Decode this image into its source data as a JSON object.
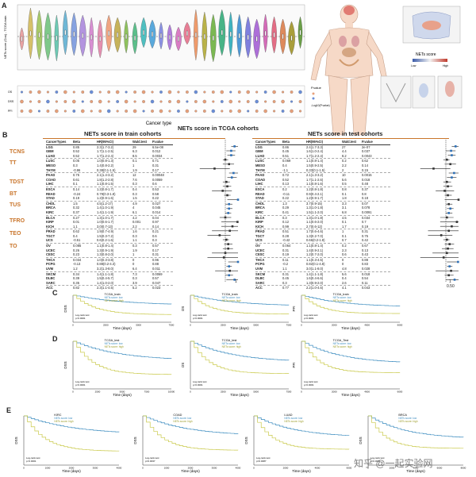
{
  "panels": {
    "a": "A",
    "b": "B",
    "c": "C",
    "d": "D",
    "e": "E"
  },
  "violin": {
    "ylabel": "NETs score (Cox) - TCGA train",
    "xlabel": "Cancer type",
    "dot_axis": [
      "OS",
      "DSS",
      "PFI"
    ],
    "legend_title": "P.value",
    "legend2_title": "-Log10(P.value)",
    "colors": [
      "#e9a3a3",
      "#d6c069",
      "#a8c96a",
      "#7fc88a",
      "#6ec9b4",
      "#6fb7d6",
      "#86a2e0",
      "#b394df",
      "#d88fd2",
      "#e58fb0",
      "#f0a582",
      "#c6b25a",
      "#8fc25e",
      "#5cbf8b",
      "#4fbfc0",
      "#5aa9dc",
      "#8a91e3",
      "#b07ddc",
      "#d97cc4",
      "#e77e95",
      "#ef9b6b",
      "#b9b248",
      "#7bb852",
      "#47b487",
      "#3fb3c0",
      "#4e98d6",
      "#8080de",
      "#ad6fd8",
      "#d46bb8",
      "#e36d85",
      "#de8a5c",
      "#a99e3b",
      "#6a9f47"
    ]
  },
  "body_legend": {
    "title": "NETs score",
    "high": "High",
    "low": "Low"
  },
  "figure_title": "NETs score in TCGA cohorts",
  "group_codes": [
    "TCNS",
    "TT",
    "TDST",
    "BT",
    "TUS",
    "TFRO",
    "TEO",
    "TO"
  ],
  "train": {
    "title": "NETs score in train cohorts",
    "headers": [
      "CancerTypes",
      "Beta",
      "HR(95%CI)",
      "Wald.test",
      "P.value"
    ],
    "rows": [
      [
        "LGG",
        "0.85",
        "2.3(1.7-3.2)",
        "29",
        "6.5e-08"
      ],
      [
        "GBM",
        "0.52",
        "1.7(1.1-2.5)",
        "6.3",
        "0.012"
      ],
      [
        "LUAD",
        "0.52",
        "1.7(1.2-2.4)",
        "8.5",
        "0.0034"
      ],
      [
        "LUSC",
        "0.05",
        "1.0(0.8-1.3)",
        "0.1",
        "0.71"
      ],
      [
        "MESO",
        "0.3",
        "1.4(0.8-2.2)",
        "1",
        "0.31"
      ],
      [
        "THYM",
        "-0.96",
        "0.38(0.1-1.5)",
        "1.9",
        "0.17"
      ],
      [
        "PAAD",
        "0.75",
        "2.1(1.4-3.2)",
        "12",
        "0.00048"
      ],
      [
        "COAD",
        "0.61",
        "1.8(1.2-2.8)",
        "7.6",
        "0.0059"
      ],
      [
        "LIHC",
        "0.1",
        "1.1(0.8-1.5)",
        "0.3",
        "0.6"
      ],
      [
        "ESCA",
        "0.14",
        "1.2(0.8-1.7)",
        "0.4",
        "0.53"
      ],
      [
        "READ",
        "-0.24",
        "0.79(0.3-1.8)",
        "0.3",
        "0.58"
      ],
      [
        "STAD",
        "0.19",
        "1.2(0.9-1.6)",
        "1.5",
        "0.22"
      ],
      [
        "CHOL",
        "1.5",
        "4.5(1.2-17)",
        "4.9",
        "0.027"
      ],
      [
        "BRCA",
        "0.32",
        "1.4(1.0-1.9)",
        "4",
        "0.045"
      ],
      [
        "KIRC",
        "0.37",
        "1.4(1.1-1.9)",
        "6.1",
        "0.014"
      ],
      [
        "BLCA",
        "0.27",
        "1.3(1.0-1.7)",
        "4.2",
        "0.04"
      ],
      [
        "KIRP",
        "0.01",
        "1.0(0.6-1.7)",
        "0.001",
        "0.97"
      ],
      [
        "KICH",
        "1.1",
        "3.0(0.7-13)",
        "2.2",
        "0.14"
      ],
      [
        "PRAD",
        "0.62",
        "1.9(0.7-4.9)",
        "1.6",
        "0.21"
      ],
      [
        "TGCT",
        "0.4",
        "1.5(0.3-7.2)",
        "0.3",
        "0.6"
      ],
      [
        "UCS",
        "-0.51",
        "0.6(0.2-1.6)",
        "1.1",
        "0.3"
      ],
      [
        "OV",
        "0.085",
        "1.1(0.8-1.4)",
        "0.3",
        "0.57"
      ],
      [
        "UCEC",
        "0.26",
        "1.3(0.9-1.9)",
        "1.9",
        "0.17"
      ],
      [
        "CESC",
        "0.23",
        "1.3(0.8-2.0)",
        "1",
        "0.31"
      ],
      [
        "THCA",
        "0.034",
        "1.0(0.3-3.8)",
        "0",
        "0.96"
      ],
      [
        "PCPG",
        "-0.13",
        "0.88(0.2-4.3)",
        "0",
        "0.88"
      ],
      [
        "UVM",
        "1.2",
        "3.2(1.3-8.0)",
        "6.4",
        "0.011"
      ],
      [
        "SKCM",
        "0.34",
        "1.4(1.1-1.8)",
        "7.3",
        "0.0069"
      ],
      [
        "DLBC",
        "0.39",
        "1.5(0.4-5.7)",
        "0.3",
        "0.57"
      ],
      [
        "SARC",
        "0.35",
        "1.4(1.0-2.0)",
        "3.9",
        "0.047"
      ],
      [
        "ACC",
        "0.82",
        "2.3(1.1-4.5)",
        "5.2",
        "0.023"
      ]
    ]
  },
  "test": {
    "title": "NETs score in test cohorts",
    "headers": [
      "CancerTypes",
      "Beta",
      "HR(95%CI)",
      "Wald.test",
      "P.value"
    ],
    "rows": [
      [
        "LGG",
        "0.86",
        "2.4(1.7-3.3)",
        "27",
        "2e-07"
      ],
      [
        "GBM",
        "0.45",
        "1.6(1.0-2.4)",
        "4.4",
        "0.037"
      ],
      [
        "LUAD",
        "0.51",
        "1.7(1.2-2.4)",
        "8.2",
        "0.0043"
      ],
      [
        "LUSC",
        "0.069",
        "1.1(0.8-1.4)",
        "0.2",
        "0.62"
      ],
      [
        "MESO",
        "0.4",
        "1.5(0.9-2.5)",
        "2.2",
        "0.14"
      ],
      [
        "THYM",
        "-1.1",
        "0.33(0.1-1.5)",
        "2",
        "0.15"
      ],
      [
        "PAAD",
        "0.72",
        "2.1(1.3-3.2)",
        "10",
        "0.0015"
      ],
      [
        "COAD",
        "0.52",
        "1.7(1.1-2.6)",
        "5.6",
        "0.018"
      ],
      [
        "LIHC",
        "0.13",
        "1.1(0.8-1.6)",
        "0.5",
        "0.48"
      ],
      [
        "ESCA",
        "0.2",
        "1.2(0.8-1.8)",
        "0.8",
        "0.37"
      ],
      [
        "READ",
        "-0.11",
        "0.9(0.4-2.1)",
        "0.1",
        "0.8"
      ],
      [
        "STAD",
        "0.22",
        "1.2(0.9-1.7)",
        "1.8",
        "0.18"
      ],
      [
        "CHOL",
        "1.3",
        "3.7(0.9-15)",
        "3.3",
        "0.07"
      ],
      [
        "BRCA",
        "0.29",
        "1.3(1.0-1.8)",
        "3.1",
        "0.078"
      ],
      [
        "KIRC",
        "0.41",
        "1.5(1.1-2.0)",
        "6.8",
        "0.0091"
      ],
      [
        "BLCA",
        "0.3",
        "1.3(1.0-1.8)",
        "4.5",
        "0.034"
      ],
      [
        "KIRP",
        "0.12",
        "1.1(0.6-2.0)",
        "0.1",
        "0.7"
      ],
      [
        "KICH",
        "0.99",
        "2.7(0.6-12)",
        "1.7",
        "0.19"
      ],
      [
        "PRAD",
        "0.51",
        "1.7(0.6-4.6)",
        "1",
        "0.31"
      ],
      [
        "TGCT",
        "0.28",
        "1.3(0.2-7.0)",
        "0.1",
        "0.75"
      ],
      [
        "UCS",
        "-0.42",
        "0.66(0.2-1.8)",
        "0.7",
        "0.42"
      ],
      [
        "OV",
        "0.064",
        "1.1(0.8-1.4)",
        "0.2",
        "0.67"
      ],
      [
        "UCEC",
        "0.31",
        "1.4(0.9-2.1)",
        "2.3",
        "0.13"
      ],
      [
        "CESC",
        "0.19",
        "1.2(0.7-2.0)",
        "0.6",
        "0.43"
      ],
      [
        "THCA",
        "0.11",
        "1.1(0.3-4.5)",
        "0",
        "0.88"
      ],
      [
        "PCPG",
        "-0.2",
        "0.82(0.1-4.8)",
        "0",
        "0.83"
      ],
      [
        "UVM",
        "1.1",
        "3.0(1.1-8.0)",
        "4.8",
        "0.028"
      ],
      [
        "SKCM",
        "0.31",
        "1.4(1.1-1.8)",
        "5.6",
        "0.018"
      ],
      [
        "DLBC",
        "0.45",
        "1.6(0.4-6.6)",
        "0.4",
        "0.54"
      ],
      [
        "SARC",
        "0.3",
        "1.3(0.9-2.0)",
        "2.6",
        "0.11"
      ],
      [
        "ACC",
        "0.77",
        "2.2(1.0-4.6)",
        "4.1",
        "0.043"
      ]
    ]
  },
  "forest": {
    "tick_left": "0",
    "tick_mid": "1",
    "tick_right": "0.50"
  },
  "km_c": [
    {
      "title": "TCGA_train",
      "ylabel": "DSS",
      "xlabel": "Time (days)",
      "ticks": [
        "0",
        "2500",
        "5000",
        "7500"
      ],
      "legend": [
        "NETs score: low",
        "NETs score: high"
      ],
      "logrank": "Log-rank test",
      "p": "p<0.0001"
    },
    {
      "title": "TCGA_train",
      "ylabel": "OS",
      "xlabel": "Time (days)",
      "ticks": [
        "0",
        "2500",
        "5000",
        "7500"
      ],
      "legend": [
        "NETs score: low",
        "NETs score: high"
      ],
      "logrank": "Log-rank test",
      "p": "p<0.0001"
    },
    {
      "title": "TCGA_train",
      "ylabel": "PFI",
      "xlabel": "Time (days)",
      "ticks": [
        "0",
        "2000",
        "4000",
        "6000"
      ],
      "legend": [
        "NETs score: low",
        "NETs score: high"
      ],
      "logrank": "Log-rank test",
      "p": "p<0.0001"
    }
  ],
  "km_d": [
    {
      "title": "TCGA_test",
      "ylabel": "DSS",
      "xlabel": "Time (days)",
      "ticks": [
        "0",
        "2500",
        "5000",
        "7500",
        "10000"
      ],
      "legend": [
        "NETs score: low",
        "NETs score: high"
      ],
      "logrank": "Log-rank test",
      "p": "p<0.0001"
    },
    {
      "title": "TCGA_test",
      "ylabel": "OS",
      "xlabel": "Time (days)",
      "ticks": [
        "0",
        "2500",
        "5000",
        "7500"
      ],
      "legend": [
        "NETs score: low",
        "NETs score: high"
      ],
      "logrank": "Log-rank test",
      "p": "p<0.0001"
    },
    {
      "title": "TCGA_Test",
      "ylabel": "PFI",
      "xlabel": "Time (days)",
      "ticks": [
        "0",
        "2000",
        "4000",
        "6000"
      ],
      "legend": [
        "NETs score: low",
        "NETs score: high"
      ],
      "logrank": "Log-rank test",
      "p": "p<0.0001"
    }
  ],
  "km_e": [
    {
      "title": "KIRC",
      "ylabel": "DSS",
      "xlabel": "Time (days)",
      "ticks": [
        "0",
        "1000",
        "2000",
        "3000",
        "4000"
      ],
      "legend": [
        "NETs score: low",
        "NETs score: high"
      ],
      "logrank": "Log-rank test",
      "p": "p<0.0001"
    },
    {
      "title": "COAD",
      "ylabel": "DSS",
      "xlabel": "Time (days)",
      "ticks": [
        "0",
        "1000",
        "2000",
        "3000",
        "4000"
      ],
      "legend": [
        "NETs score: low",
        "NETs score: high"
      ],
      "logrank": "Log-rank test",
      "p": "p=0.0037"
    },
    {
      "title": "LUAD",
      "ylabel": "DSS",
      "xlabel": "Time (days)",
      "ticks": [
        "0",
        "2000",
        "4000",
        "6000"
      ],
      "legend": [
        "NETs score: low",
        "NETs score: high"
      ],
      "logrank": "Log-rank test",
      "p": "p=0.0087"
    },
    {
      "title": "BRCA",
      "ylabel": "DSS",
      "xlabel": "Time (days)",
      "ticks": [
        "0",
        "2000",
        "4000",
        "6000",
        "8000"
      ],
      "legend": [
        "NETs score: low",
        "NETs score: high"
      ],
      "logrank": "Log-rank test",
      "p": "p=0.0031"
    }
  ],
  "watermark": "知乎 @一起实验网"
}
